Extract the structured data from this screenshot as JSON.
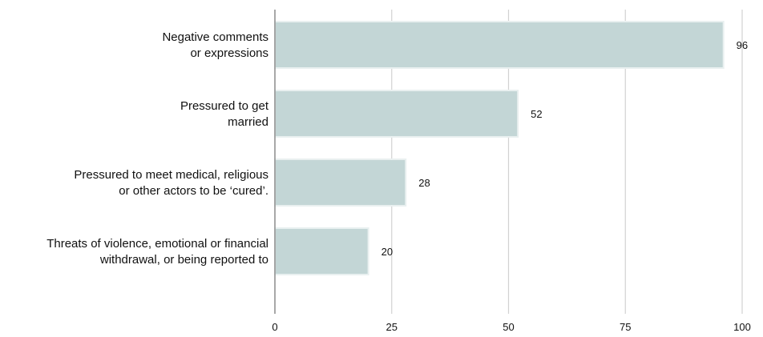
{
  "chart_data": {
    "type": "bar",
    "orientation": "horizontal",
    "categories": [
      [
        "Negative comments",
        "or expressions"
      ],
      [
        "Pressured to get",
        "married"
      ],
      [
        "Pressured to meet medical, religious",
        "or other actors to be ‘cured’."
      ],
      [
        "Threats of violence, emotional or financial",
        "withdrawal, or being reported to"
      ]
    ],
    "values": [
      96,
      52,
      28,
      20
    ],
    "value_labels": [
      "96",
      "52",
      "28",
      "20"
    ],
    "xlim": [
      0,
      100
    ],
    "xticks": [
      0,
      25,
      50,
      75,
      100
    ],
    "xtick_labels": [
      "0",
      "25",
      "50",
      "75",
      "100"
    ],
    "title": "",
    "xlabel": "",
    "ylabel": "",
    "grid": "vertical",
    "legend": "none",
    "colors": {
      "bar_fill": "#c3d6d6",
      "bar_stroke": "#e9f0f0",
      "grid": "#d2d2d2",
      "axis": "#8c8c8c",
      "text": "#111111"
    }
  }
}
